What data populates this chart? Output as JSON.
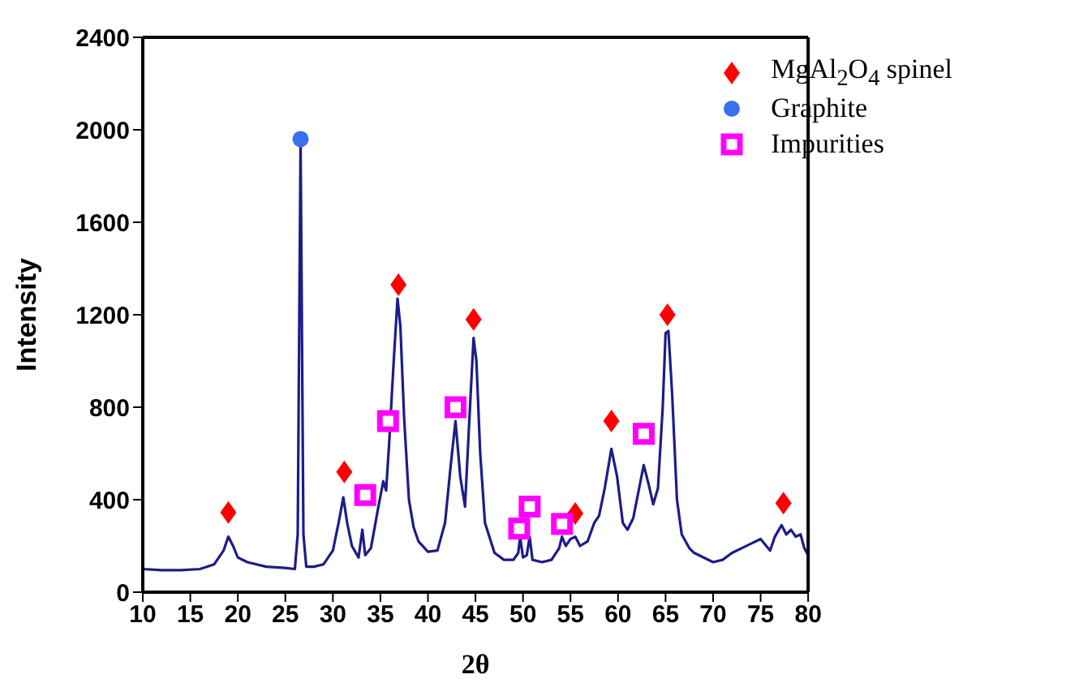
{
  "chart_data": {
    "type": "line",
    "xlabel": "2θ",
    "ylabel": "Intensity",
    "xlim": [
      10,
      80
    ],
    "xticks": [
      10,
      15,
      20,
      25,
      30,
      35,
      40,
      45,
      50,
      55,
      60,
      65,
      70,
      75,
      80
    ],
    "ylim": [
      0,
      2400
    ],
    "yticks": [
      0,
      400,
      800,
      1200,
      1600,
      2000,
      2400
    ],
    "grid": false,
    "legend": "top right",
    "series": [
      {
        "color": "#1c1c8a",
        "line_style": "solid",
        "marker": "none",
        "x": [
          10,
          12,
          14,
          16,
          17.5,
          18.5,
          19,
          19.5,
          20,
          21,
          23,
          25,
          26,
          26.3,
          26.6,
          26.9,
          27.2,
          28,
          29,
          30,
          30.6,
          31.1,
          31.5,
          32,
          32.7,
          33.1,
          33.4,
          34,
          34.7,
          35.3,
          35.6,
          35.9,
          36.4,
          36.8,
          37.1,
          37.5,
          38,
          38.5,
          39,
          40,
          41,
          41.8,
          42.4,
          42.9,
          43.4,
          43.9,
          44.3,
          44.8,
          45.1,
          45.5,
          46,
          47,
          48,
          49,
          49.5,
          49.7,
          50,
          50.4,
          50.7,
          51,
          52,
          53,
          53.8,
          54.1,
          54.5,
          55,
          55.5,
          56,
          56.8,
          57.5,
          58,
          58.6,
          59.3,
          59.9,
          60.5,
          61,
          61.6,
          62.7,
          63.2,
          63.7,
          64.2,
          64.7,
          65,
          65.3,
          65.7,
          66.2,
          66.7,
          67.5,
          68,
          69,
          70,
          71,
          72,
          73,
          74,
          75,
          76,
          76.5,
          77.2,
          77.7,
          78.2,
          78.7,
          79.2,
          79.6,
          80
        ],
        "values": [
          100,
          95,
          95,
          100,
          120,
          180,
          240,
          200,
          150,
          130,
          110,
          105,
          100,
          250,
          1950,
          250,
          110,
          110,
          120,
          180,
          300,
          410,
          300,
          200,
          150,
          270,
          160,
          190,
          350,
          480,
          440,
          630,
          1000,
          1270,
          1150,
          750,
          400,
          280,
          220,
          175,
          180,
          300,
          550,
          740,
          500,
          370,
          700,
          1100,
          1000,
          600,
          300,
          170,
          140,
          140,
          170,
          240,
          150,
          160,
          240,
          140,
          130,
          140,
          190,
          240,
          200,
          230,
          240,
          200,
          220,
          300,
          330,
          450,
          620,
          500,
          300,
          270,
          320,
          550,
          470,
          380,
          450,
          800,
          1120,
          1130,
          850,
          400,
          250,
          190,
          170,
          150,
          130,
          140,
          170,
          190,
          210,
          230,
          180,
          240,
          290,
          250,
          270,
          240,
          250,
          190,
          160
        ]
      },
      {
        "type": "scatter",
        "name": "MgAl$_{2}$O$_{4}$ spinel",
        "color": "#ff0000",
        "marker": "diamond",
        "x": [
          19,
          31.2,
          36.9,
          44.8,
          55.5,
          59.3,
          65.2,
          77.4
        ],
        "values": [
          345,
          520,
          1330,
          1180,
          340,
          740,
          1200,
          385
        ]
      },
      {
        "type": "scatter",
        "name": "Graphite",
        "color": "#3a6ff0",
        "marker": "circle",
        "x": [
          26.6
        ],
        "values": [
          1960
        ]
      },
      {
        "type": "scatter",
        "name": "Impurities",
        "color": "#ff00ff",
        "marker": "square",
        "x": [
          33.4,
          35.8,
          42.9,
          49.6,
          50.7,
          54.1,
          62.7
        ],
        "values": [
          420,
          740,
          800,
          275,
          370,
          295,
          685
        ]
      }
    ]
  }
}
